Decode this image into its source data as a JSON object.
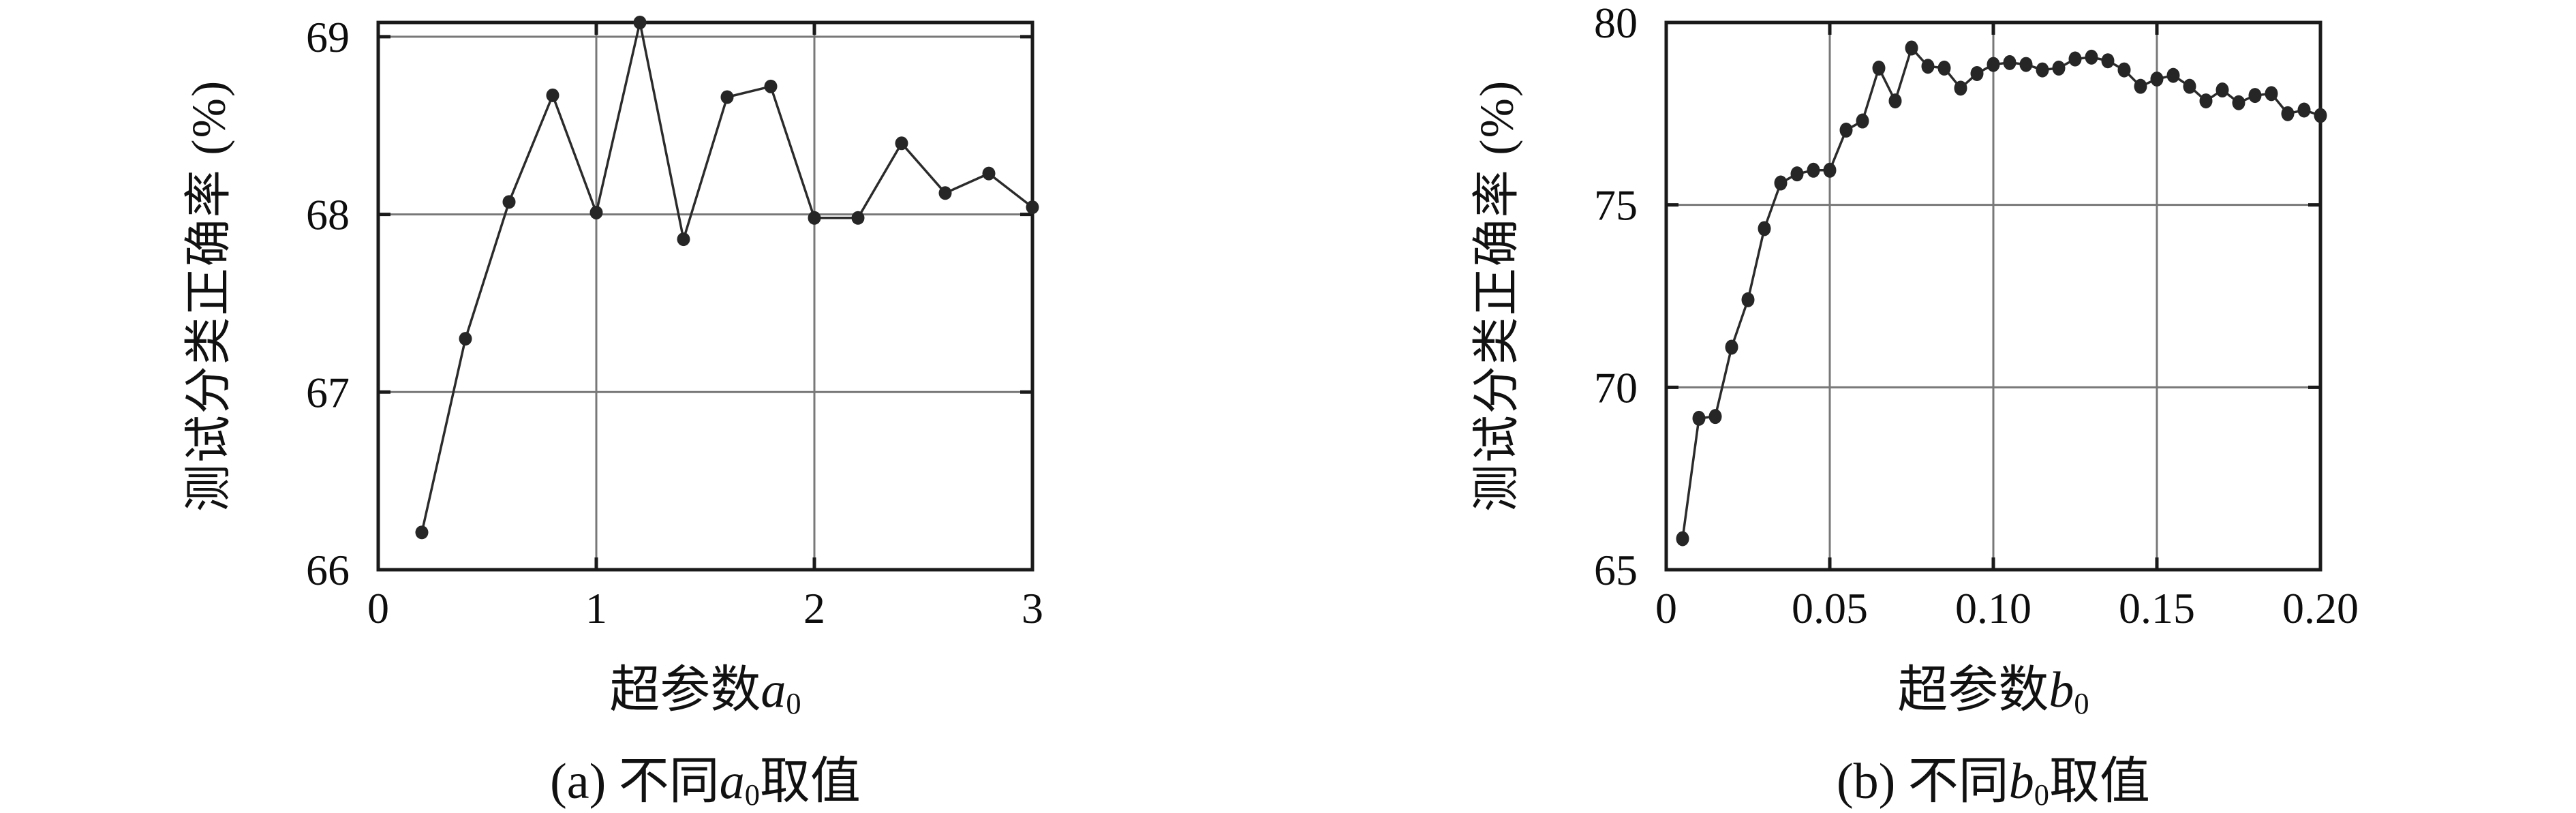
{
  "figure": {
    "background": "#ffffff",
    "axis_color": "#1a1a1a",
    "grid_color": "#787878",
    "line_color": "#2b2b2b",
    "marker_color": "#262626",
    "text_color": "#111111"
  },
  "chart_data": [
    {
      "id": "a",
      "type": "line",
      "ylabel": "测试分类正确率 (%)",
      "xlabel": {
        "prefix": "超参数",
        "var": "a",
        "sub": "0"
      },
      "caption": {
        "prefix": "(a) 不同",
        "var": "a",
        "sub": "0",
        "suffix": "取值"
      },
      "xlim": [
        0,
        3
      ],
      "ylim": [
        66,
        69.08
      ],
      "xticks": {
        "values": [
          0,
          1,
          2,
          3
        ],
        "labels": [
          "0",
          "1",
          "2",
          "3"
        ]
      },
      "yticks": {
        "values": [
          66,
          67,
          68,
          69
        ],
        "labels": [
          "66",
          "67",
          "68",
          "69"
        ]
      },
      "xgrid": [
        1,
        2
      ],
      "ygrid": [
        67,
        68,
        69
      ],
      "grid": true,
      "legend": null,
      "marker": {
        "rx": 9.5,
        "ry": 10
      },
      "x": [
        0.2,
        0.4,
        0.6,
        0.8,
        1.0,
        1.2,
        1.4,
        1.6,
        1.8,
        2.0,
        2.2,
        2.4,
        2.6,
        2.8,
        3.0
      ],
      "y": [
        66.21,
        67.3,
        68.07,
        68.67,
        68.01,
        69.08,
        67.86,
        68.66,
        68.72,
        67.98,
        67.98,
        68.4,
        68.12,
        68.23,
        68.04
      ]
    },
    {
      "id": "b",
      "type": "line",
      "ylabel": "测试分类正确率 (%)",
      "xlabel": {
        "prefix": "超参数",
        "var": "b",
        "sub": "0"
      },
      "caption": {
        "prefix": "(b) 不同",
        "var": "b",
        "sub": "0",
        "suffix": "取值"
      },
      "xlim": [
        0,
        0.2
      ],
      "ylim": [
        65,
        80
      ],
      "xticks": {
        "values": [
          0,
          0.05,
          0.1,
          0.15,
          0.2
        ],
        "labels": [
          "0",
          "0.05",
          "0.10",
          "0.15",
          "0.20"
        ]
      },
      "yticks": {
        "values": [
          65,
          70,
          75,
          80
        ],
        "labels": [
          "65",
          "70",
          "75",
          "80"
        ]
      },
      "xgrid": [
        0.05,
        0.1,
        0.15
      ],
      "ygrid": [
        70,
        75
      ],
      "grid": true,
      "legend": null,
      "marker": {
        "rx": 9.5,
        "ry": 11
      },
      "x": [
        0.005,
        0.01,
        0.015,
        0.02,
        0.025,
        0.03,
        0.035,
        0.04,
        0.045,
        0.05,
        0.055,
        0.06,
        0.065,
        0.07,
        0.075,
        0.08,
        0.085,
        0.09,
        0.095,
        0.1,
        0.105,
        0.11,
        0.115,
        0.12,
        0.125,
        0.13,
        0.135,
        0.14,
        0.145,
        0.15,
        0.155,
        0.16,
        0.165,
        0.17,
        0.175,
        0.18,
        0.185,
        0.19,
        0.195,
        0.2
      ],
      "y": [
        65.85,
        69.15,
        69.2,
        71.1,
        72.4,
        74.35,
        75.6,
        75.85,
        75.95,
        75.95,
        77.05,
        77.3,
        78.75,
        77.85,
        79.3,
        78.8,
        78.75,
        78.2,
        78.6,
        78.85,
        78.9,
        78.85,
        78.7,
        78.75,
        79.0,
        79.05,
        78.95,
        78.7,
        78.25,
        78.45,
        78.55,
        78.25,
        77.85,
        78.15,
        77.8,
        78.0,
        78.05,
        77.5,
        77.6,
        77.45
      ]
    }
  ]
}
